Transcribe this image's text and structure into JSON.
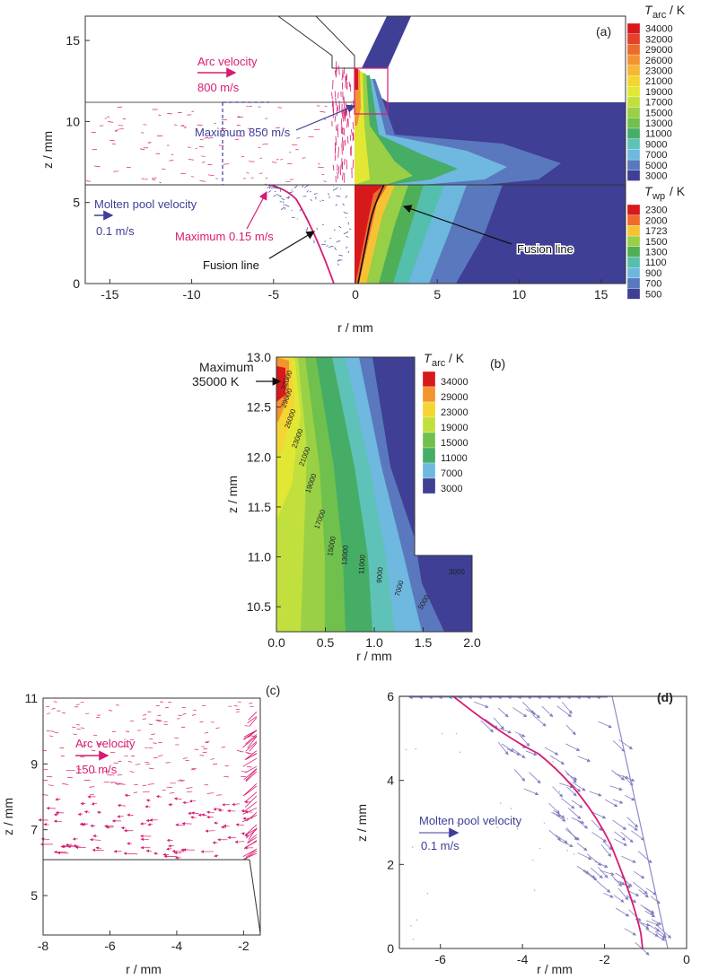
{
  "chart_data": [
    {
      "panel": "(a)",
      "type": "heatmap",
      "xlabel": "r / mm",
      "ylabel": "z / mm",
      "xlim": [
        -16.5,
        16.5
      ],
      "ylim": [
        0,
        16.5
      ],
      "xticks": [
        "-15",
        "-10",
        "-5",
        "0",
        "5",
        "10",
        "15"
      ],
      "yticks": [
        "0",
        "5",
        "10",
        "15"
      ],
      "arc_colorbar": {
        "title": "T",
        "title_sub": "arc",
        "unit": "/ K",
        "levels": [
          "34000",
          "32000",
          "29000",
          "26000",
          "23000",
          "21000",
          "19000",
          "17000",
          "15000",
          "13000",
          "11000",
          "9000",
          "7000",
          "5000",
          "3000"
        ],
        "colors": [
          "#d7191c",
          "#e4402a",
          "#ed6a2c",
          "#f39430",
          "#f7b733",
          "#f3d631",
          "#e2e733",
          "#c1e03d",
          "#99d046",
          "#6fc04d",
          "#45ad66",
          "#5fc2b8",
          "#6fb8df",
          "#5a78bd",
          "#3f3f96"
        ]
      },
      "wp_colorbar": {
        "title": "T",
        "title_sub": "wp",
        "unit": "/ K",
        "levels": [
          "2300",
          "2000",
          "1723",
          "1500",
          "1300",
          "1100",
          "900",
          "700",
          "500"
        ],
        "colors": [
          "#d7191c",
          "#ef6a2c",
          "#f6c233",
          "#97cf46",
          "#4faf57",
          "#55bfae",
          "#6db7df",
          "#5a78bd",
          "#3f3f96"
        ]
      },
      "annotations": {
        "arc_velocity": "Arc velocity",
        "arc_velocity_value": "800 m/s",
        "max_arc": "Maximum 850 m/s",
        "pool_velocity": "Molten pool velocity",
        "pool_velocity_value": "0.1 m/s",
        "max_pool": "Maximum 0.15 m/s",
        "fusion_left": "Fusion line",
        "fusion_right": "Fusion line",
        "label": "(a)"
      }
    },
    {
      "panel": "(b)",
      "type": "heatmap",
      "xlabel": "r / mm",
      "ylabel": "z / mm",
      "xlim": [
        0,
        2.0
      ],
      "ylim": [
        10.25,
        13.0
      ],
      "xticks": [
        "0.0",
        "0.5",
        "1.0",
        "1.5",
        "2.0"
      ],
      "yticks": [
        "10.5",
        "11.0",
        "11.5",
        "12.0",
        "12.5",
        "13.0"
      ],
      "colorbar": {
        "title": "T",
        "title_sub": "arc",
        "unit": "/ K",
        "levels": [
          "34000",
          "29000",
          "23000",
          "19000",
          "15000",
          "11000",
          "7000",
          "3000"
        ],
        "colors": [
          "#d7191c",
          "#f39430",
          "#f3d631",
          "#c1e03d",
          "#6fc04d",
          "#45ad66",
          "#6fb8df",
          "#3f3f96"
        ]
      },
      "contour_labels": [
        "32000",
        "29000",
        "26000",
        "23000",
        "21000",
        "19000",
        "17000",
        "15000",
        "13000",
        "11000",
        "9000",
        "7000",
        "5000",
        "3000"
      ],
      "annotations": {
        "maximum": "Maximum",
        "maximum_value": "35000 K",
        "label": "(b)"
      }
    },
    {
      "panel": "(c)",
      "type": "scatter",
      "xlabel": "r / mm",
      "ylabel": "z / mm",
      "xlim": [
        -8,
        -1.5
      ],
      "ylim": [
        3.8,
        11
      ],
      "xticks": [
        "-8",
        "-6",
        "-4",
        "-2"
      ],
      "yticks": [
        "5",
        "7",
        "9",
        "11"
      ],
      "annotations": {
        "arc_velocity": "Arc velocity",
        "arc_velocity_value": "150 m/s",
        "label": "(c)"
      }
    },
    {
      "panel": "(d)",
      "type": "scatter",
      "xlabel": "r / mm",
      "ylabel": "z / mm",
      "xlim": [
        -7,
        0
      ],
      "ylim": [
        0,
        6
      ],
      "xticks": [
        "-6",
        "-4",
        "-2",
        "0"
      ],
      "yticks": [
        "0",
        "2",
        "4",
        "6"
      ],
      "annotations": {
        "pool_velocity": "Molten pool velocity",
        "pool_velocity_value": "0.1 m/s",
        "label": "(d)"
      }
    }
  ]
}
